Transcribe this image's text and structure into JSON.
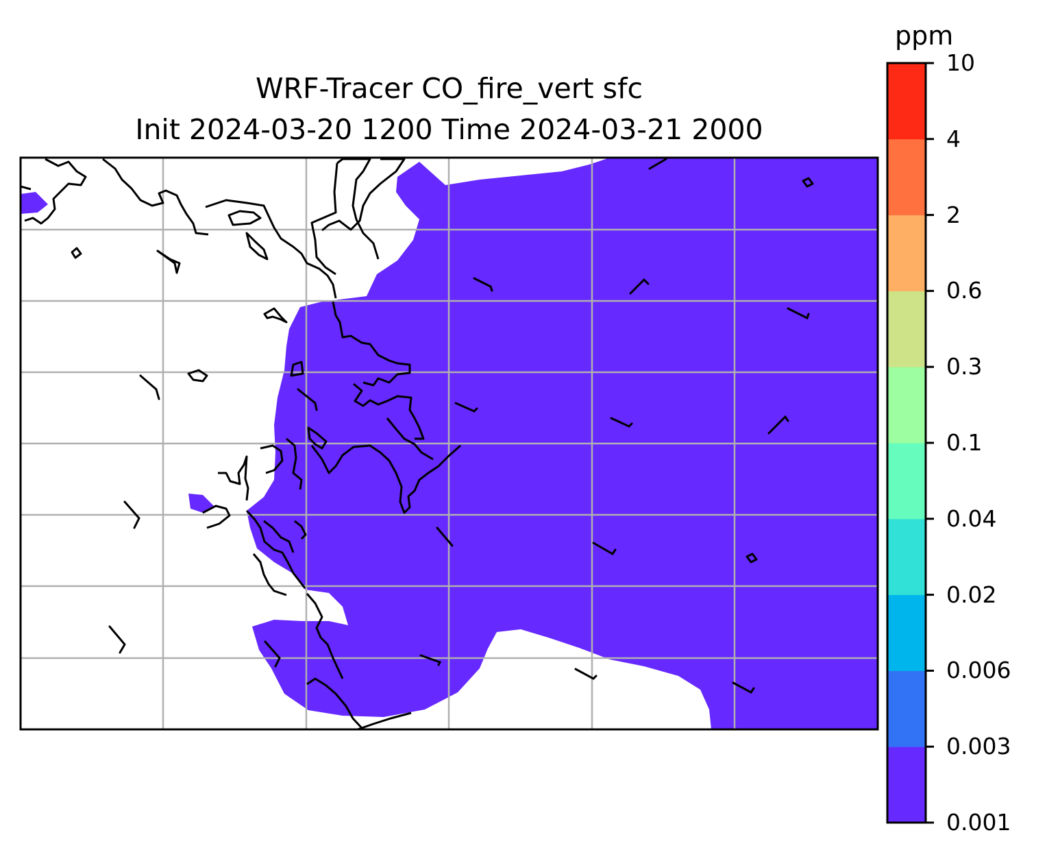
{
  "title": {
    "line1": "WRF-Tracer CO_fire_vert sfc",
    "line2": "Init 2024-03-20 1200 Time 2024-03-21 2000"
  },
  "colorbar": {
    "label": "ppm",
    "ticks": [
      "0.001",
      "0.003",
      "0.006",
      "0.02",
      "0.04",
      "0.1",
      "0.3",
      "0.6",
      "2",
      "4",
      "10"
    ],
    "colors": [
      "#6629ff",
      "#3272f5",
      "#00b4ec",
      "#31e0d6",
      "#66fcbd",
      "#9cfea0",
      "#cee288",
      "#feaf63",
      "#ff7240",
      "#ff2a16"
    ]
  },
  "map": {
    "field_color": "#6629ff",
    "coastline_color": "#000000",
    "gridline_color": "#b0b0b0",
    "max_contour_level": "0.001–0.003 ppm",
    "gridlines": true
  }
}
